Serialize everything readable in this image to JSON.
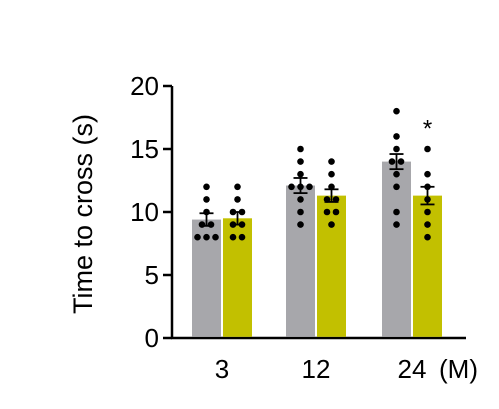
{
  "chart_data": {
    "type": "bar",
    "title": "",
    "ylabel": "Time to cross (s)",
    "xlabel": "",
    "x_unit": "(M)",
    "categories": [
      "3",
      "12",
      "24"
    ],
    "ylim": [
      0,
      20
    ],
    "yticks": [
      0,
      5,
      10,
      15,
      20
    ],
    "grid": false,
    "legend": "none",
    "series": [
      {
        "color": "#a7a7ab",
        "values": [
          9.4,
          12.1,
          14.0
        ],
        "sem": [
          0.5,
          0.6,
          0.6
        ],
        "points": [
          [
            8,
            8,
            8,
            9,
            9,
            10,
            11,
            12
          ],
          [
            9,
            10,
            11,
            12,
            12,
            12,
            13,
            14,
            15
          ],
          [
            9,
            10,
            12,
            13,
            14,
            14,
            15,
            16,
            18
          ]
        ]
      },
      {
        "color": "#c2c000",
        "values": [
          9.5,
          11.3,
          11.3
        ],
        "sem": [
          0.5,
          0.5,
          0.7
        ],
        "points": [
          [
            8,
            8,
            9,
            9,
            10,
            10,
            11,
            12
          ],
          [
            9,
            10,
            10,
            11,
            11,
            12,
            13,
            14
          ],
          [
            8,
            9,
            10,
            11,
            12,
            13,
            15
          ]
        ]
      }
    ],
    "annotations": [
      {
        "text": "*",
        "category": "24",
        "series": 1,
        "y": 17.1
      }
    ]
  }
}
